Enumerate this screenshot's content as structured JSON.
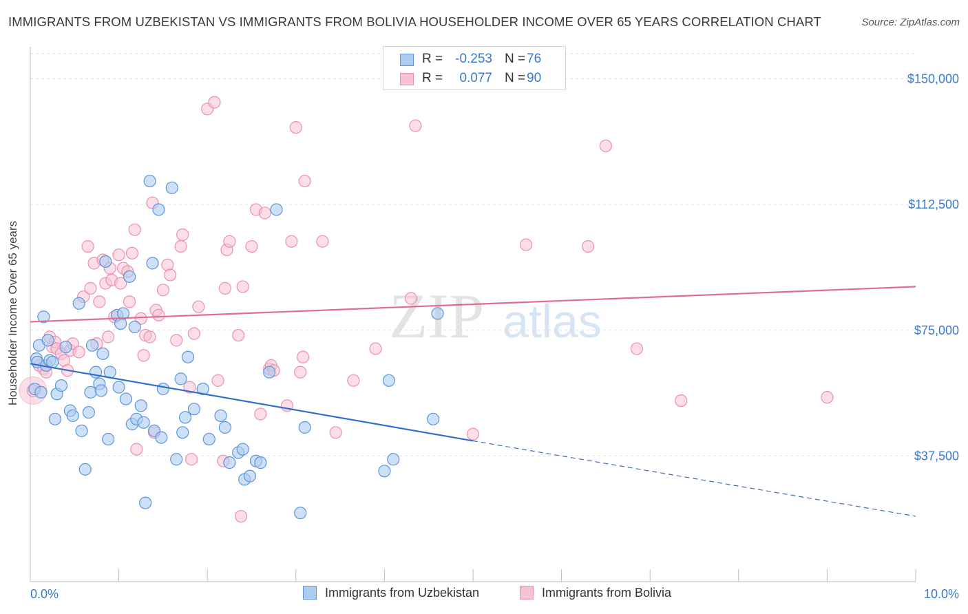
{
  "title": "IMMIGRANTS FROM UZBEKISTAN VS IMMIGRANTS FROM BOLIVIA HOUSEHOLDER INCOME OVER 65 YEARS CORRELATION CHART",
  "source": "Source: ZipAtlas.com",
  "watermark": {
    "zip": "ZIP",
    "atlas": "atlas"
  },
  "legend": {
    "rows": [
      {
        "r_label": "R =",
        "r_value": "-0.253",
        "n_label": "N =",
        "n_value": "76"
      },
      {
        "r_label": "R =",
        "r_value": "0.077",
        "n_label": "N =",
        "n_value": "90"
      }
    ]
  },
  "colors": {
    "uzbekistan_fill": "#aecbf0",
    "uzbekistan_stroke": "#5b95dc",
    "uzbekistan_line": "#2f6fd0",
    "bolivia_fill": "#f7c3d3",
    "bolivia_stroke": "#ec8fb0",
    "bolivia_line": "#e06b95",
    "tick_label": "#3a78c9"
  },
  "chart_data": {
    "type": "scatter",
    "title": "IMMIGRANTS FROM UZBEKISTAN VS IMMIGRANTS FROM BOLIVIA HOUSEHOLDER INCOME OVER 65 YEARS CORRELATION CHART",
    "xlabel": "",
    "ylabel": "Householder Income Over 65 years",
    "xlim": [
      0,
      10
    ],
    "ylim": [
      0,
      157500
    ],
    "x_tick_labels": [
      "0.0%",
      "10.0%"
    ],
    "y_ticks": [
      37500,
      75000,
      112500,
      150000
    ],
    "y_tick_labels": [
      "$37,500",
      "$75,000",
      "$112,500",
      "$150,000"
    ],
    "grid": "horizontal dashed",
    "legend_position": "bottom-center",
    "series": [
      {
        "name": "Immigrants from Uzbekistan",
        "r": -0.253,
        "n": 76,
        "trend": {
          "x": [
            0.0,
            5.0
          ],
          "y": [
            65000,
            42000
          ],
          "dashed_to": [
            10.0,
            19500
          ]
        },
        "points": [
          [
            0.05,
            57500
          ],
          [
            0.07,
            66500
          ],
          [
            0.08,
            65500
          ],
          [
            0.1,
            70500
          ],
          [
            0.12,
            56500
          ],
          [
            0.15,
            79000
          ],
          [
            0.18,
            64500
          ],
          [
            0.2,
            72000
          ],
          [
            0.22,
            66000
          ],
          [
            0.25,
            65500
          ],
          [
            0.28,
            48500
          ],
          [
            0.3,
            56000
          ],
          [
            0.35,
            58500
          ],
          [
            0.4,
            70000
          ],
          [
            0.45,
            51000
          ],
          [
            0.48,
            49500
          ],
          [
            0.55,
            83000
          ],
          [
            0.58,
            45000
          ],
          [
            0.62,
            33500
          ],
          [
            0.66,
            50500
          ],
          [
            0.68,
            56500
          ],
          [
            0.7,
            70500
          ],
          [
            0.74,
            62500
          ],
          [
            0.78,
            59000
          ],
          [
            0.8,
            57000
          ],
          [
            0.82,
            68000
          ],
          [
            0.85,
            95500
          ],
          [
            0.88,
            42500
          ],
          [
            0.9,
            62500
          ],
          [
            0.98,
            79500
          ],
          [
            1.0,
            58000
          ],
          [
            1.02,
            77000
          ],
          [
            1.05,
            80000
          ],
          [
            1.08,
            54500
          ],
          [
            1.12,
            91000
          ],
          [
            1.15,
            47000
          ],
          [
            1.18,
            76000
          ],
          [
            1.2,
            48500
          ],
          [
            1.25,
            52500
          ],
          [
            1.28,
            47500
          ],
          [
            1.3,
            23500
          ],
          [
            1.35,
            119500
          ],
          [
            1.38,
            95000
          ],
          [
            1.4,
            45000
          ],
          [
            1.45,
            111000
          ],
          [
            1.48,
            43000
          ],
          [
            1.5,
            57500
          ],
          [
            1.6,
            117500
          ],
          [
            1.65,
            36500
          ],
          [
            1.7,
            60500
          ],
          [
            1.72,
            44500
          ],
          [
            1.75,
            49000
          ],
          [
            1.78,
            67000
          ],
          [
            1.85,
            51500
          ],
          [
            1.95,
            57500
          ],
          [
            2.02,
            42500
          ],
          [
            2.15,
            49500
          ],
          [
            2.2,
            46000
          ],
          [
            2.25,
            35500
          ],
          [
            2.35,
            38500
          ],
          [
            2.4,
            39500
          ],
          [
            2.42,
            30500
          ],
          [
            2.48,
            31500
          ],
          [
            2.55,
            36000
          ],
          [
            2.6,
            35500
          ],
          [
            2.7,
            62500
          ],
          [
            2.78,
            111000
          ],
          [
            3.05,
            20500
          ],
          [
            3.1,
            46000
          ],
          [
            4.0,
            33000
          ],
          [
            4.05,
            60000
          ],
          [
            4.1,
            36500
          ],
          [
            4.55,
            48500
          ],
          [
            4.6,
            80000
          ]
        ]
      },
      {
        "name": "Immigrants from Bolivia",
        "r": 0.077,
        "n": 90,
        "trend": {
          "x": [
            0.0,
            10.0
          ],
          "y": [
            77500,
            88000
          ]
        },
        "points": [
          [
            0.03,
            57000
          ],
          [
            0.1,
            64500
          ],
          [
            0.15,
            63500
          ],
          [
            0.18,
            62500
          ],
          [
            0.22,
            73000
          ],
          [
            0.25,
            70000
          ],
          [
            0.28,
            71500
          ],
          [
            0.3,
            69500
          ],
          [
            0.35,
            68000
          ],
          [
            0.38,
            66000
          ],
          [
            0.42,
            63000
          ],
          [
            0.45,
            69000
          ],
          [
            0.48,
            71000
          ],
          [
            0.55,
            68500
          ],
          [
            0.6,
            85000
          ],
          [
            0.65,
            100000
          ],
          [
            0.68,
            87500
          ],
          [
            0.72,
            95000
          ],
          [
            0.75,
            71000
          ],
          [
            0.78,
            83500
          ],
          [
            0.82,
            96000
          ],
          [
            0.85,
            89000
          ],
          [
            0.88,
            73000
          ],
          [
            0.9,
            93500
          ],
          [
            0.92,
            90000
          ],
          [
            0.95,
            79000
          ],
          [
            1.0,
            97500
          ],
          [
            1.02,
            89000
          ],
          [
            1.05,
            93500
          ],
          [
            1.1,
            92500
          ],
          [
            1.12,
            83500
          ],
          [
            1.15,
            98000
          ],
          [
            1.18,
            105000
          ],
          [
            1.2,
            39500
          ],
          [
            1.25,
            78500
          ],
          [
            1.28,
            67500
          ],
          [
            1.3,
            73500
          ],
          [
            1.35,
            73000
          ],
          [
            1.38,
            113000
          ],
          [
            1.4,
            44500
          ],
          [
            1.42,
            81000
          ],
          [
            1.45,
            79500
          ],
          [
            1.5,
            87000
          ],
          [
            1.55,
            94500
          ],
          [
            1.58,
            91500
          ],
          [
            1.65,
            72000
          ],
          [
            1.7,
            100000
          ],
          [
            1.72,
            103500
          ],
          [
            1.8,
            58000
          ],
          [
            1.82,
            36500
          ],
          [
            1.85,
            74000
          ],
          [
            1.9,
            82000
          ],
          [
            2.0,
            141000
          ],
          [
            2.08,
            143000
          ],
          [
            2.12,
            60000
          ],
          [
            2.18,
            36000
          ],
          [
            2.2,
            87500
          ],
          [
            2.22,
            99000
          ],
          [
            2.25,
            101500
          ],
          [
            2.35,
            73500
          ],
          [
            2.38,
            19500
          ],
          [
            2.4,
            88000
          ],
          [
            2.5,
            100000
          ],
          [
            2.55,
            111000
          ],
          [
            2.6,
            50000
          ],
          [
            2.65,
            110000
          ],
          [
            2.7,
            63500
          ],
          [
            2.72,
            64500
          ],
          [
            2.75,
            63000
          ],
          [
            2.9,
            52500
          ],
          [
            2.95,
            101500
          ],
          [
            3.0,
            135500
          ],
          [
            3.05,
            62500
          ],
          [
            3.08,
            67000
          ],
          [
            3.1,
            119500
          ],
          [
            3.3,
            101500
          ],
          [
            3.45,
            44500
          ],
          [
            3.65,
            60000
          ],
          [
            3.9,
            69500
          ],
          [
            4.3,
            84500
          ],
          [
            4.35,
            136000
          ],
          [
            5.0,
            44000
          ],
          [
            5.6,
            100500
          ],
          [
            6.3,
            100000
          ],
          [
            6.5,
            130000
          ],
          [
            6.85,
            69500
          ],
          [
            7.35,
            54000
          ],
          [
            9.0,
            55000
          ]
        ]
      }
    ]
  }
}
